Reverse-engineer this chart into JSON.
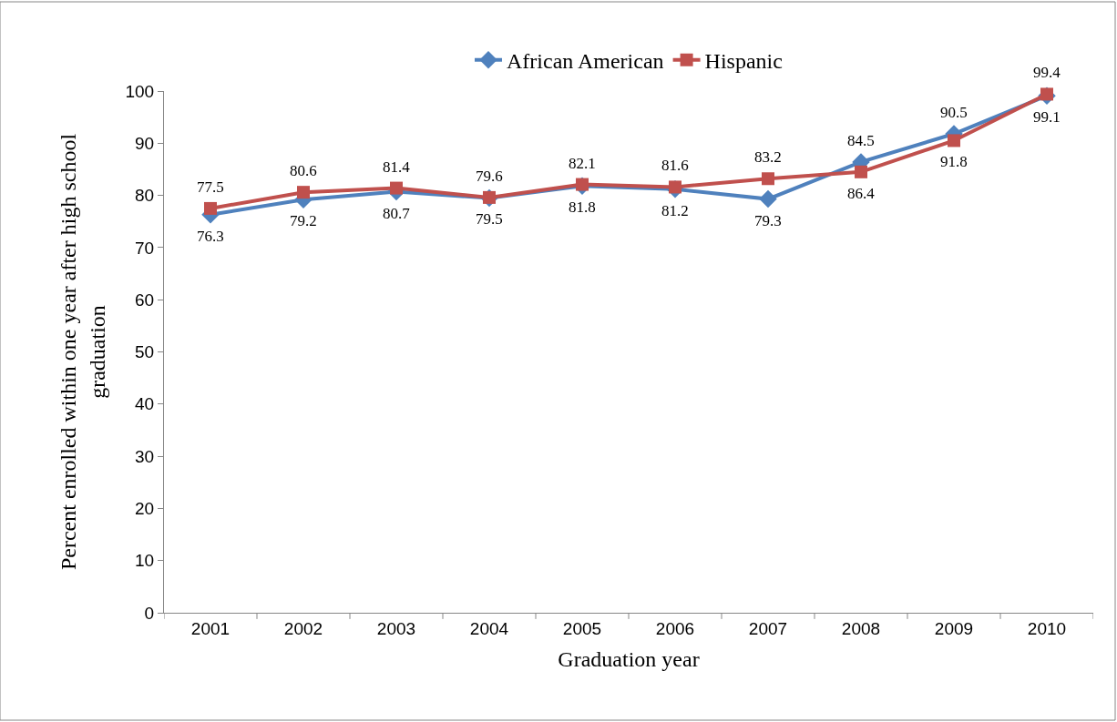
{
  "chart_data": {
    "type": "line",
    "xlabel": "Graduation year",
    "ylabel": "Percent enrolled within one year after high school graduation",
    "categories": [
      "2001",
      "2002",
      "2003",
      "2004",
      "2005",
      "2006",
      "2007",
      "2008",
      "2009",
      "2010"
    ],
    "series": [
      {
        "name": "African American",
        "color": "#4f81bd",
        "marker": "diamond",
        "values": [
          76.3,
          79.2,
          80.7,
          79.5,
          81.8,
          81.2,
          79.3,
          86.4,
          91.8,
          99.1
        ]
      },
      {
        "name": "Hispanic",
        "color": "#c0504d",
        "marker": "square",
        "values": [
          77.5,
          80.6,
          81.4,
          79.6,
          82.1,
          81.6,
          83.2,
          84.5,
          90.5,
          99.4
        ]
      }
    ],
    "ylim": [
      0,
      100
    ],
    "yticks": [
      0,
      10,
      20,
      30,
      40,
      50,
      60,
      70,
      80,
      90,
      100
    ],
    "data_labels": true,
    "legend": "top",
    "line_style": "solid"
  }
}
